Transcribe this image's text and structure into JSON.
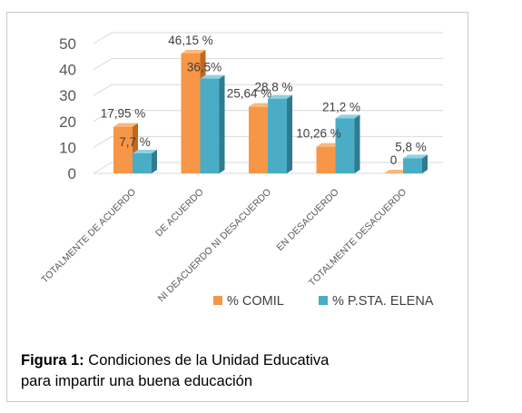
{
  "chart_data": {
    "type": "bar",
    "categories": [
      "TOTALMENTE DE ACUERDO",
      "DE ACUERDO",
      "NI DEACUERDO NI DESACUERDO",
      "EN DESACUERDO",
      "TOTALMENTE DESACUERDO"
    ],
    "series": [
      {
        "name": "% COMIL",
        "values": [
          17.95,
          46.15,
          25.64,
          10.26,
          0
        ],
        "labels": [
          "17,95 %",
          "46,15 %",
          "25,64 %",
          "10,26 %",
          "0"
        ],
        "color": "#f79646",
        "side": "#c0691e",
        "top": "#fbb77d"
      },
      {
        "name": "% P.STA. ELENA",
        "values": [
          7.7,
          36.5,
          28.8,
          21.2,
          5.8
        ],
        "labels": [
          "7,7 %",
          "36,5%",
          "28,8 %",
          "21,2 %",
          "5,8 %"
        ],
        "color": "#4bacc6",
        "side": "#2f7b8f",
        "top": "#8fd1e2"
      }
    ],
    "ylim": [
      0,
      50
    ],
    "yticks": [
      "0",
      "10",
      "20",
      "30",
      "40",
      "50"
    ],
    "grid": true,
    "legend_position": "bottom",
    "view": "3d-column"
  },
  "caption": {
    "label": "Figura 1:",
    "text_line1": " Condiciones de la Unidad Educativa",
    "text_line2": "para impartir una buena educación"
  }
}
